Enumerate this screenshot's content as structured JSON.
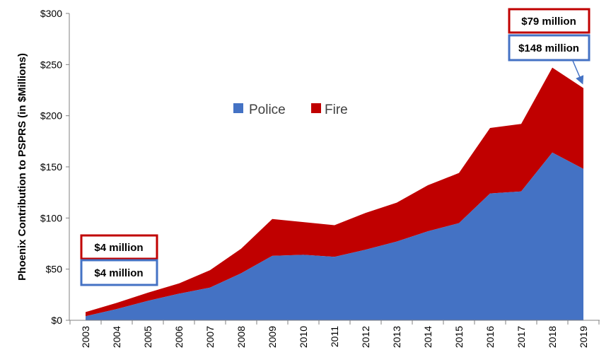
{
  "chart_data": {
    "type": "area",
    "stacked": true,
    "title": "",
    "xlabel": "",
    "ylabel": "Phoenix Contribution to PSPRS (in $Millions)",
    "x": [
      "2003",
      "2004",
      "2005",
      "2006",
      "2007",
      "2008",
      "2009",
      "2010",
      "2011",
      "2012",
      "2013",
      "2014",
      "2015",
      "2016",
      "2017",
      "2018",
      "2019"
    ],
    "ylim": [
      0,
      300
    ],
    "yticks": [
      0,
      50,
      100,
      150,
      200,
      250,
      300
    ],
    "ytick_labels": [
      "$0",
      "$50",
      "$100",
      "$150",
      "$200",
      "$250",
      "$300"
    ],
    "series": [
      {
        "name": "Police",
        "color": "#4472C4",
        "values": [
          4,
          11,
          19,
          26,
          32,
          46,
          63,
          64,
          62,
          69,
          77,
          87,
          95,
          124,
          126,
          164,
          148
        ]
      },
      {
        "name": "Fire",
        "color": "#C00000",
        "values": [
          4,
          6,
          8,
          10,
          17,
          24,
          36,
          32,
          31,
          36,
          38,
          45,
          49,
          64,
          66,
          83,
          79
        ]
      }
    ],
    "legend_position": "center",
    "annotations": [
      {
        "text": "$4 million",
        "series": "Fire",
        "x": "2003"
      },
      {
        "text": "$4 million",
        "series": "Police",
        "x": "2003"
      },
      {
        "text": "$79 million",
        "series": "Fire",
        "x": "2019"
      },
      {
        "text": "$148 million",
        "series": "Police",
        "x": "2019"
      }
    ]
  }
}
